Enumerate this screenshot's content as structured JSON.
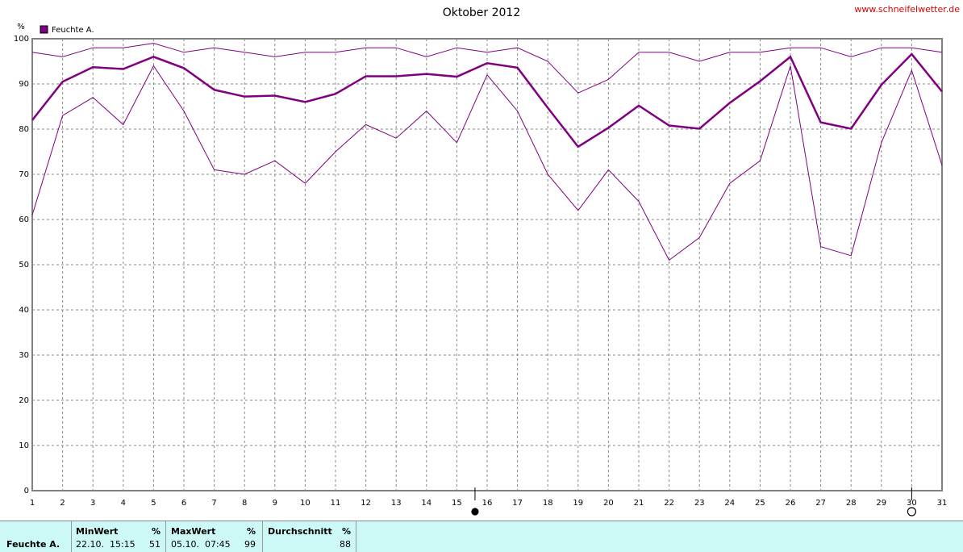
{
  "chart_data": {
    "type": "line",
    "title": "Oktober 2012",
    "source": "www.schneifelwetter.de",
    "y_label": "%",
    "x": [
      1,
      2,
      3,
      4,
      5,
      6,
      7,
      8,
      9,
      10,
      11,
      12,
      13,
      14,
      15,
      16,
      17,
      18,
      19,
      20,
      21,
      22,
      23,
      24,
      25,
      26,
      27,
      28,
      29,
      30,
      31
    ],
    "xlim": [
      1,
      31
    ],
    "xticks": [
      1,
      2,
      3,
      4,
      5,
      6,
      7,
      8,
      9,
      10,
      11,
      12,
      13,
      14,
      15,
      16,
      17,
      18,
      19,
      20,
      21,
      22,
      23,
      24,
      25,
      26,
      27,
      28,
      29,
      30,
      31
    ],
    "ylim": [
      0,
      100
    ],
    "yticks": [
      0,
      10,
      20,
      30,
      40,
      50,
      60,
      70,
      80,
      90,
      100
    ],
    "grid": true,
    "series": [
      {
        "name": "Feuchte A.",
        "color": "#800080",
        "values": [
          82,
          90.5,
          93.7,
          93.3,
          96,
          93.5,
          88.7,
          87.2,
          87.4,
          86,
          87.8,
          91.7,
          91.7,
          92.2,
          91.6,
          94.6,
          93.6,
          84.7,
          76.1,
          80.3,
          85.2,
          80.8,
          80.1,
          85.8,
          90.6,
          96,
          81.5,
          80.1,
          89.8,
          96.6,
          88.3
        ]
      },
      {
        "color": "#800080",
        "values": [
          97,
          96,
          98,
          98,
          99,
          97,
          98,
          97,
          96,
          97,
          97,
          98,
          98,
          96,
          98,
          97,
          98,
          95,
          88,
          91,
          97,
          97,
          95,
          97,
          97,
          98,
          98,
          96,
          98,
          98,
          97
        ]
      },
      {
        "color": "#800080",
        "values": [
          61,
          83,
          87,
          81,
          94,
          84,
          71,
          70,
          73,
          68,
          75,
          81,
          78,
          84,
          77,
          92,
          84,
          70,
          62,
          71,
          64,
          51,
          56,
          68,
          73,
          94,
          54,
          52,
          77,
          93,
          72
        ]
      }
    ],
    "moon_phases": [
      {
        "x": 15.6,
        "filled": true
      },
      {
        "x": 30,
        "filled": false
      }
    ]
  },
  "summary_table": {
    "row_label": "Feuchte A.",
    "min": {
      "header": "MinWert",
      "unit": "%",
      "time": "22.10.  15:15",
      "value": "51"
    },
    "max": {
      "header": "MaxWert",
      "unit": "%",
      "time": "05.10.  07:45",
      "value": "99"
    },
    "avg": {
      "header": "Durchschnitt",
      "unit": "%",
      "value": "88"
    }
  }
}
